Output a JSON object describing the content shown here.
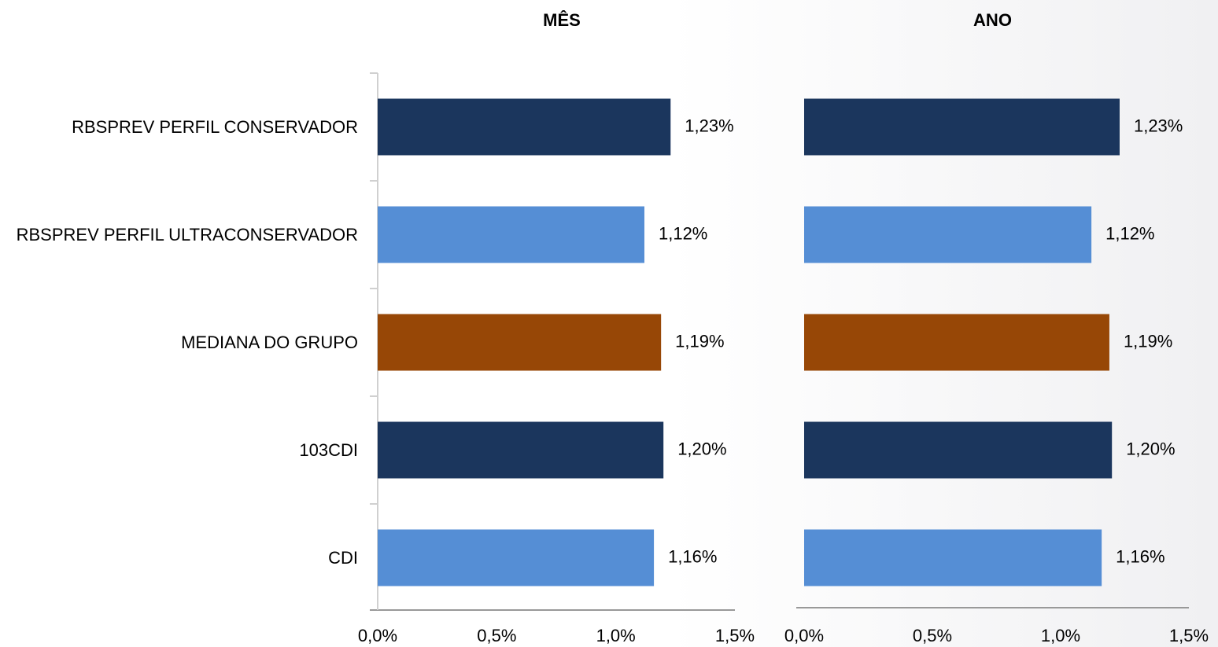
{
  "chart_data": [
    {
      "type": "hbar",
      "title": "MÊS",
      "categories": [
        "RBSPREV PERFIL CONSERVADOR",
        "RBSPREV PERFIL ULTRACONSERVADOR",
        "MEDIANA DO GRUPO",
        "103CDI",
        "CDI"
      ],
      "values": [
        1.23,
        1.12,
        1.19,
        1.2,
        1.16
      ],
      "value_labels": [
        "1,23%",
        "1,12%",
        "1,19%",
        "1,20%",
        "1,16%"
      ],
      "colors": [
        "#1b365d",
        "#558ed5",
        "#974706",
        "#1b365d",
        "#558ed5"
      ],
      "xlim": [
        0,
        1.5
      ],
      "xticks": [
        {
          "value": 0,
          "label": "0,0%"
        },
        {
          "value": 0.5,
          "label": "0,5%"
        },
        {
          "value": 1.0,
          "label": "1,0%"
        },
        {
          "value": 1.5,
          "label": "1,5%"
        }
      ]
    },
    {
      "type": "hbar",
      "title": "ANO",
      "values": [
        1.23,
        1.12,
        1.19,
        1.2,
        1.16
      ],
      "value_labels": [
        "1,23%",
        "1,12%",
        "1,19%",
        "1,20%",
        "1,16%"
      ],
      "colors": [
        "#1b365d",
        "#558ed5",
        "#974706",
        "#1b365d",
        "#558ed5"
      ],
      "xlim": [
        0,
        1.5
      ],
      "xticks": [
        {
          "value": 0,
          "label": "0,0%"
        },
        {
          "value": 0.5,
          "label": "0,5%"
        },
        {
          "value": 1.0,
          "label": "1,0%"
        },
        {
          "value": 1.5,
          "label": "1,5%"
        }
      ]
    }
  ]
}
